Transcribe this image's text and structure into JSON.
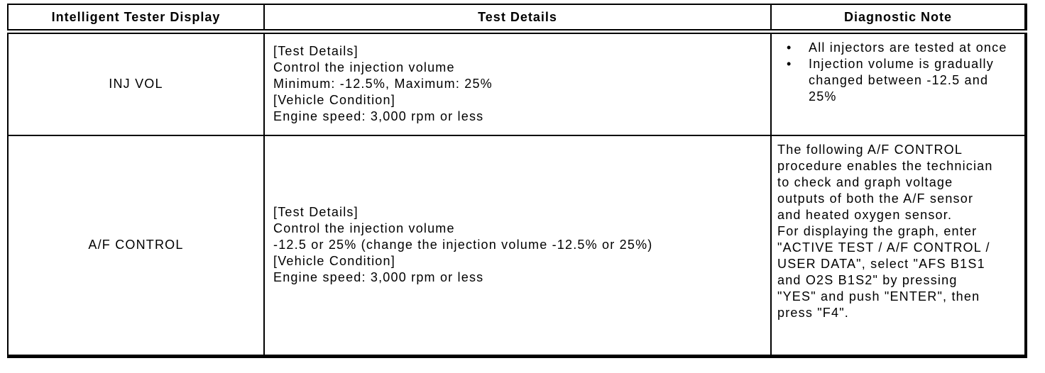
{
  "colors": {
    "background": "#ffffff",
    "text": "#000000",
    "border": "#000000"
  },
  "table": {
    "headers": [
      "Intelligent Tester Display",
      "Test Details",
      "Diagnostic Note"
    ],
    "rows": [
      {
        "display": "INJ VOL",
        "test_details": [
          "[Test Details]",
          "Control the injection volume",
          "Minimum: -12.5%, Maximum: 25%",
          "[Vehicle Condition]",
          "Engine speed: 3,000 rpm or less"
        ],
        "diagnostic_note": {
          "bullet_char": "•",
          "bullets": [
            "All injectors are tested at once",
            "Injection volume is gradually changed between -12.5 and 25%"
          ]
        }
      },
      {
        "display": "A/F CONTROL",
        "test_details": [
          "[Test Details]",
          "Control the injection volume",
          "-12.5 or 25% (change the injection volume -12.5% or 25%)",
          "[Vehicle Condition]",
          "Engine speed: 3,000 rpm or less"
        ],
        "diagnostic_note": {
          "paragraphs": [
            "The following A/F CONTROL procedure enables the technician to check and graph voltage outputs of both the A/F sensor and heated oxygen sensor.",
            "For displaying the graph, enter \"ACTIVE TEST / A/F CONTROL / USER DATA\", select \"AFS B1S1 and O2S B1S2\" by pressing \"YES\" and push \"ENTER\", then press \"F4\"."
          ]
        }
      }
    ]
  }
}
